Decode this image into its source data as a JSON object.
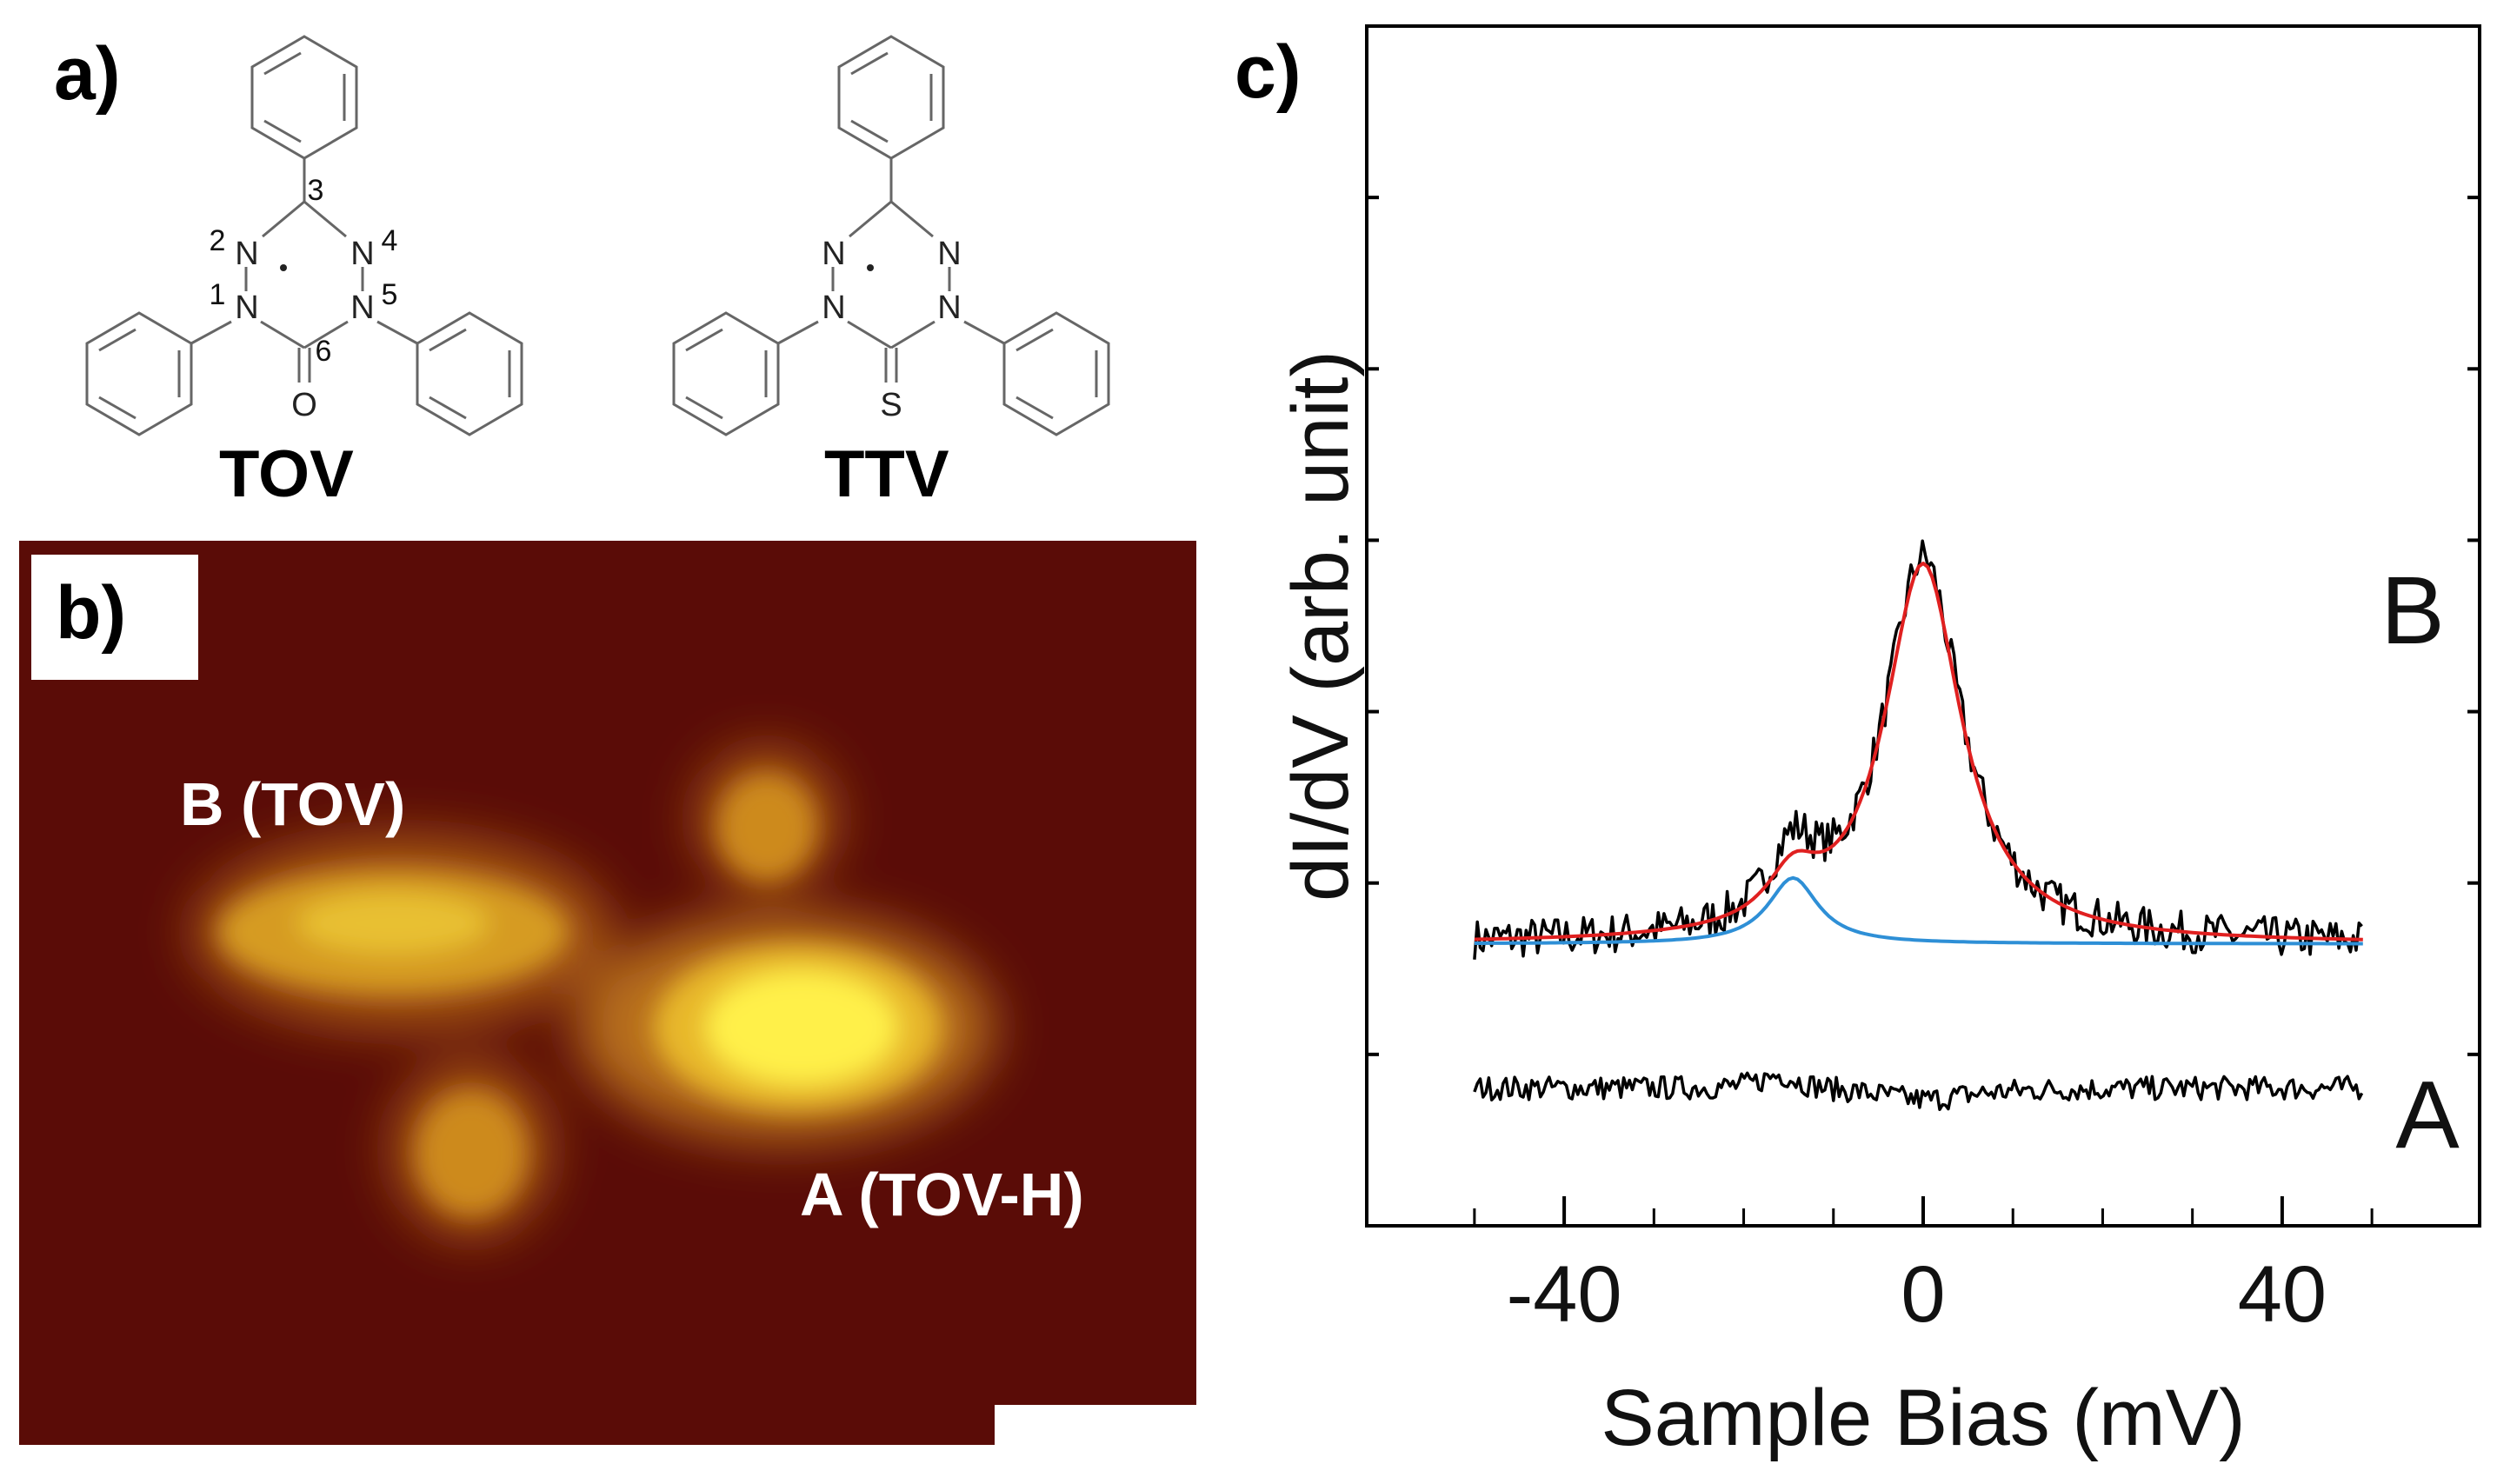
{
  "figure": {
    "panel_a": {
      "letter": "a)",
      "molecules": [
        {
          "name": "TOV",
          "atom_labels": {
            "n2": "N",
            "n4": "N",
            "n1": "N",
            "n5": "N",
            "o": "O"
          },
          "position_numbers": [
            "1",
            "2",
            "3",
            "4",
            "5",
            "6"
          ]
        },
        {
          "name": "TTV",
          "atom_labels": {
            "n2": "N",
            "n4": "N",
            "n1": "N",
            "n5": "N",
            "s": "S"
          }
        }
      ]
    },
    "panel_b": {
      "letter": "b)",
      "labels": {
        "b": "B (TOV)",
        "a": "A (TOV-H)"
      },
      "colors": {
        "background": "#5a0c07",
        "bright": "#ffff40",
        "mid": "#e6b21e",
        "dim": "#c87a16"
      }
    },
    "panel_c": {
      "letter": "c)"
    }
  },
  "chart_data": {
    "type": "line",
    "xlabel": "Sample Bias (mV)",
    "ylabel": "dI/dV (arb. unit)",
    "xlim": [
      -62,
      62
    ],
    "ylim": [
      0,
      10
    ],
    "xticks": [
      -40,
      0,
      40
    ],
    "x_minor_ticks": [
      -50,
      -30,
      -20,
      -10,
      10,
      20,
      30,
      50
    ],
    "yticks_unlabeled": 6,
    "grid": false,
    "series": [
      {
        "name": "B",
        "label": "B",
        "color": "#000000",
        "kind": "data",
        "baseline": 2.35,
        "peaks": [
          {
            "center": 0,
            "amp": 3.2,
            "hwhm": 5.2
          },
          {
            "center": -14.5,
            "amp": 0.6,
            "hwhm": 3.2
          }
        ],
        "noise": 0.17,
        "x_range": [
          -50,
          49
        ]
      },
      {
        "name": "B fit",
        "color": "#e02020",
        "kind": "fit",
        "baseline": 2.35,
        "peaks": [
          {
            "center": 0,
            "amp": 3.15,
            "hwhm": 5.2
          },
          {
            "center": -14.5,
            "amp": 0.4,
            "hwhm": 3.5
          }
        ],
        "x_range": [
          -50,
          49
        ]
      },
      {
        "name": "B component",
        "color": "#2e8fd6",
        "kind": "fit",
        "baseline": 2.35,
        "peaks": [
          {
            "center": -14.5,
            "amp": 0.55,
            "hwhm": 3.4
          }
        ],
        "x_range": [
          -50,
          49
        ]
      },
      {
        "name": "A",
        "label": "A",
        "color": "#000000",
        "kind": "data",
        "baseline": 1.15,
        "peaks": [
          {
            "center": -16,
            "amp": 0.12,
            "hwhm": 2.5
          },
          {
            "center": 0,
            "amp": -0.1,
            "hwhm": 6
          }
        ],
        "noise": 0.1,
        "x_range": [
          -50,
          49
        ]
      }
    ]
  }
}
